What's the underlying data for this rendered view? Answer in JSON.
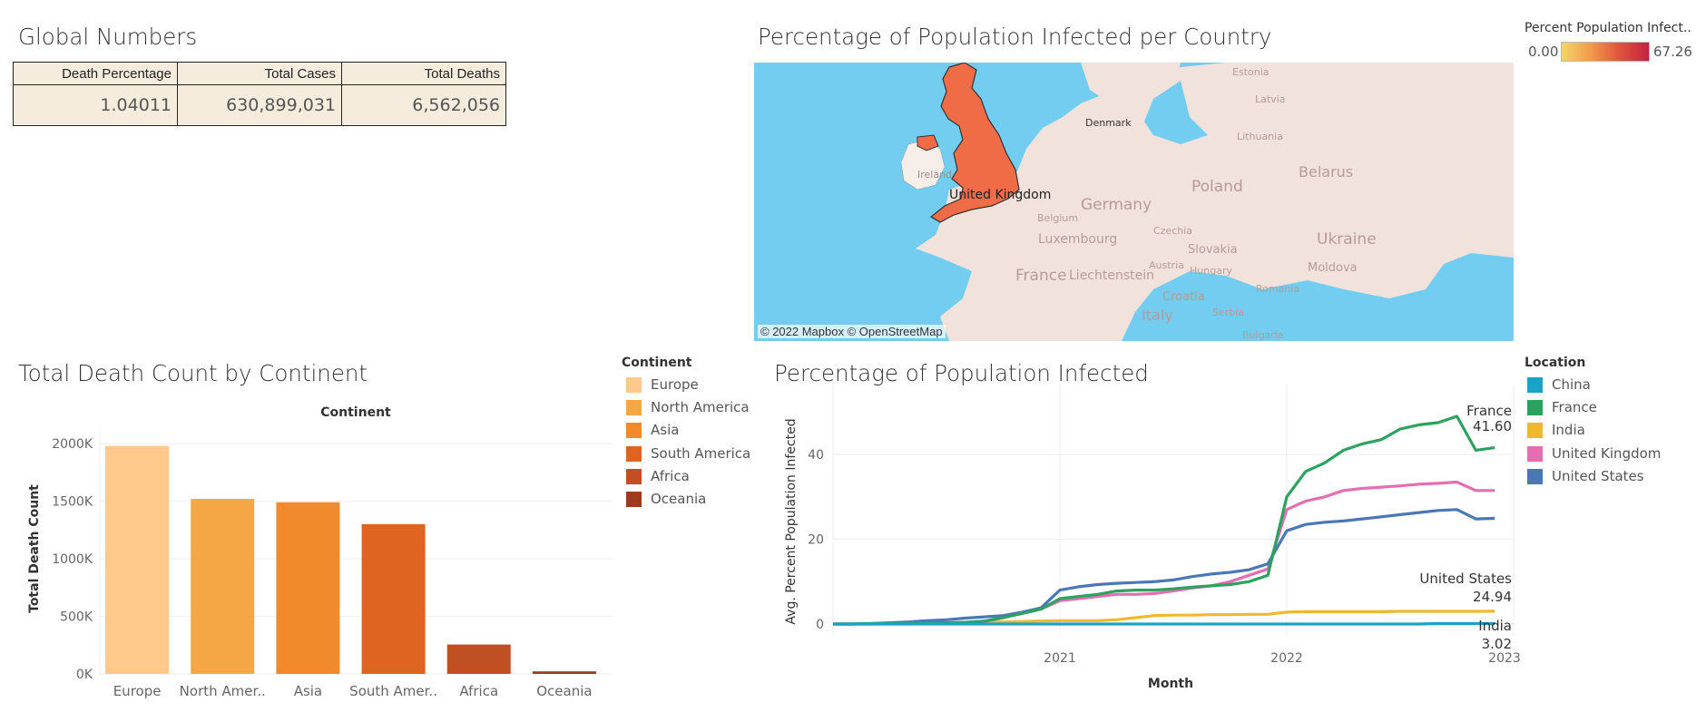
{
  "global": {
    "title": "Global Numbers",
    "headers": [
      "Death Percentage",
      "Total Cases",
      "Total Deaths"
    ],
    "values": [
      "1.04011",
      "630,899,031",
      "6,562,056"
    ]
  },
  "map": {
    "title": "Percentage of Population Infected per Country",
    "attribution": "© 2022 Mapbox © OpenStreetMap",
    "legend_title": "Percent Population Infect..",
    "legend_min": "0.00",
    "legend_max": "67.26",
    "labels": [
      "Estonia",
      "Latvia",
      "Lithuania",
      "Denmark",
      "Belarus",
      "Poland",
      "Ireland",
      "United Kingdom",
      "Germany",
      "Belgium",
      "Luxembourg",
      "Czechia",
      "Slovakia",
      "Ukraine",
      "Austria",
      "Hungary",
      "Moldova",
      "France",
      "Liechtenstein",
      "Croatia",
      "Romania",
      "Serbia",
      "Bulgaria",
      "Italy"
    ],
    "colors": {
      "water": "#72cdf0",
      "land": "#f1e3dc",
      "highlight": "#ef6c47"
    }
  },
  "bar_panel": {
    "title": "Total Death Count by Continent",
    "header": "Continent",
    "legend_title": "Continent",
    "legend": [
      "Europe",
      "North America",
      "Asia",
      "South America",
      "Africa",
      "Oceania"
    ],
    "tick_labels": [
      "2000K",
      "1500K",
      "1000K",
      "500K",
      "0K"
    ]
  },
  "line_panel": {
    "title": "Percentage of Population Infected",
    "legend_title": "Location",
    "legend": [
      "China",
      "France",
      "India",
      "United Kingdom",
      "United States"
    ],
    "tick_labels_y": [
      "40",
      "20",
      "0"
    ],
    "tick_labels_x": [
      "2021",
      "2022",
      "2023"
    ],
    "end_labels": [
      {
        "name": "France",
        "value": "41.60"
      },
      {
        "name": "United States",
        "value": "24.94"
      },
      {
        "name": "India",
        "value": "3.02"
      }
    ]
  },
  "chart_data": [
    {
      "type": "bar",
      "title": "Total Death Count by Continent",
      "xlabel": "Continent",
      "ylabel": "Total Death Count",
      "categories": [
        "Europe",
        "North Amer..",
        "Asia",
        "South Amer..",
        "Africa",
        "Oceania"
      ],
      "values": [
        1980000,
        1520000,
        1490000,
        1300000,
        255000,
        22000
      ],
      "colors": [
        "#fec98a",
        "#f5a745",
        "#f08a2c",
        "#e06421",
        "#c14f24",
        "#9c3b1e"
      ],
      "ylim": [
        0,
        2000000
      ],
      "grid": true,
      "legend": "right"
    },
    {
      "type": "line",
      "title": "Percentage of Population Infected",
      "xlabel": "Month",
      "ylabel": "Avg. Percent Population Infected",
      "x": [
        "2020-01",
        "2020-02",
        "2020-03",
        "2020-04",
        "2020-05",
        "2020-06",
        "2020-07",
        "2020-08",
        "2020-09",
        "2020-10",
        "2020-11",
        "2020-12",
        "2021-01",
        "2021-02",
        "2021-03",
        "2021-04",
        "2021-05",
        "2021-06",
        "2021-07",
        "2021-08",
        "2021-09",
        "2021-10",
        "2021-11",
        "2021-12",
        "2022-01",
        "2022-02",
        "2022-03",
        "2022-04",
        "2022-05",
        "2022-06",
        "2022-07",
        "2022-08",
        "2022-09",
        "2022-10",
        "2022-11",
        "2022-12"
      ],
      "xlim": [
        "2020-01",
        "2023-01"
      ],
      "ylim": [
        0,
        52
      ],
      "grid": true,
      "legend": "right",
      "series": [
        {
          "name": "China",
          "color": "#1ba3c6",
          "values": [
            0,
            0,
            0,
            0,
            0,
            0,
            0,
            0,
            0,
            0,
            0,
            0,
            0,
            0,
            0,
            0,
            0,
            0,
            0,
            0,
            0,
            0,
            0,
            0,
            0,
            0,
            0,
            0,
            0,
            0,
            0,
            0,
            0.1,
            0.1,
            0.1,
            0.1
          ]
        },
        {
          "name": "France",
          "color": "#2ca25f",
          "values": [
            0,
            0,
            0.1,
            0.2,
            0.2,
            0.3,
            0.3,
            0.4,
            0.7,
            1.5,
            2.5,
            3.5,
            6.0,
            6.5,
            7.0,
            7.8,
            8.0,
            8.0,
            8.3,
            8.7,
            9.0,
            9.3,
            10.0,
            11.5,
            30.0,
            36.0,
            38.0,
            41.0,
            42.5,
            43.5,
            46.0,
            47.0,
            47.5,
            49.0,
            41.0,
            41.6
          ]
        },
        {
          "name": "India",
          "color": "#f1b82d",
          "values": [
            0,
            0,
            0,
            0,
            0,
            0.1,
            0.1,
            0.2,
            0.4,
            0.5,
            0.6,
            0.7,
            0.8,
            0.8,
            0.8,
            1.0,
            1.5,
            2.0,
            2.1,
            2.1,
            2.2,
            2.2,
            2.3,
            2.3,
            2.8,
            2.9,
            2.9,
            2.9,
            2.9,
            2.9,
            3.0,
            3.0,
            3.0,
            3.0,
            3.0,
            3.02
          ]
        },
        {
          "name": "United Kingdom",
          "color": "#e56db1",
          "values": [
            0,
            0,
            0,
            0.1,
            0.2,
            0.3,
            0.3,
            0.4,
            0.6,
            1.5,
            2.5,
            3.5,
            5.5,
            6.0,
            6.5,
            7.0,
            7.0,
            7.2,
            7.8,
            8.5,
            9.0,
            10.0,
            11.5,
            13.0,
            27.0,
            29.0,
            30.0,
            31.5,
            32.0,
            32.3,
            32.6,
            33.0,
            33.2,
            33.5,
            31.5,
            31.5
          ]
        },
        {
          "name": "United States",
          "color": "#4a78b7",
          "values": [
            0,
            0,
            0.1,
            0.3,
            0.5,
            0.8,
            1.0,
            1.4,
            1.7,
            2.0,
            2.8,
            3.8,
            8.0,
            8.8,
            9.3,
            9.6,
            9.8,
            10.0,
            10.4,
            11.2,
            11.8,
            12.2,
            12.8,
            14.2,
            22.0,
            23.5,
            24.0,
            24.3,
            24.8,
            25.3,
            25.8,
            26.3,
            26.8,
            27.0,
            24.8,
            24.94
          ]
        }
      ]
    }
  ]
}
